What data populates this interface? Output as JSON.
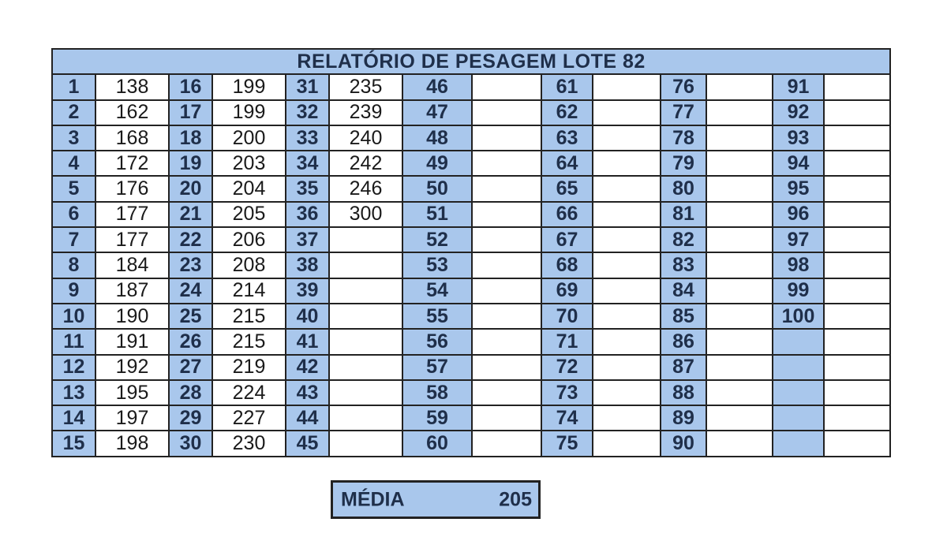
{
  "title": "RELATÓRIO DE PESAGEM LOTE 82",
  "columns": [
    {
      "numbers": [
        "1",
        "2",
        "3",
        "4",
        "5",
        "6",
        "7",
        "8",
        "9",
        "10",
        "11",
        "12",
        "13",
        "14",
        "15"
      ],
      "values": [
        "138",
        "162",
        "168",
        "172",
        "176",
        "177",
        "177",
        "184",
        "187",
        "190",
        "191",
        "192",
        "195",
        "197",
        "198"
      ]
    },
    {
      "numbers": [
        "16",
        "17",
        "18",
        "19",
        "20",
        "21",
        "22",
        "23",
        "24",
        "25",
        "26",
        "27",
        "28",
        "29",
        "30"
      ],
      "values": [
        "199",
        "199",
        "200",
        "203",
        "204",
        "205",
        "206",
        "208",
        "214",
        "215",
        "215",
        "219",
        "224",
        "227",
        "230"
      ]
    },
    {
      "numbers": [
        "31",
        "32",
        "33",
        "34",
        "35",
        "36",
        "37",
        "38",
        "39",
        "40",
        "41",
        "42",
        "43",
        "44",
        "45"
      ],
      "values": [
        "235",
        "239",
        "240",
        "242",
        "246",
        "300",
        "",
        "",
        "",
        "",
        "",
        "",
        "",
        "",
        ""
      ]
    },
    {
      "numbers": [
        "46",
        "47",
        "48",
        "49",
        "50",
        "51",
        "52",
        "53",
        "54",
        "55",
        "56",
        "57",
        "58",
        "59",
        "60"
      ],
      "values": [
        "",
        "",
        "",
        "",
        "",
        "",
        "",
        "",
        "",
        "",
        "",
        "",
        "",
        "",
        ""
      ]
    },
    {
      "numbers": [
        "61",
        "62",
        "63",
        "64",
        "65",
        "66",
        "67",
        "68",
        "69",
        "70",
        "71",
        "72",
        "73",
        "74",
        "75"
      ],
      "values": [
        "",
        "",
        "",
        "",
        "",
        "",
        "",
        "",
        "",
        "",
        "",
        "",
        "",
        "",
        ""
      ]
    },
    {
      "numbers": [
        "76",
        "77",
        "78",
        "79",
        "80",
        "81",
        "82",
        "83",
        "84",
        "85",
        "86",
        "87",
        "88",
        "89",
        "90"
      ],
      "values": [
        "",
        "",
        "",
        "",
        "",
        "",
        "",
        "",
        "",
        "",
        "",
        "",
        "",
        "",
        ""
      ]
    },
    {
      "numbers": [
        "91",
        "92",
        "93",
        "94",
        "95",
        "96",
        "97",
        "98",
        "99",
        "100",
        "",
        "",
        "",
        "",
        ""
      ],
      "values": [
        "",
        "",
        "",
        "",
        "",
        "",
        "",
        "",
        "",
        "",
        "",
        "",
        "",
        "",
        ""
      ]
    }
  ],
  "summary": {
    "label": "MÉDIA",
    "value": "205"
  },
  "colors": {
    "header_fill": "#a9c7ec",
    "number_fill": "#a9c7ec",
    "value_fill": "#ffffff",
    "border": "#222222"
  }
}
